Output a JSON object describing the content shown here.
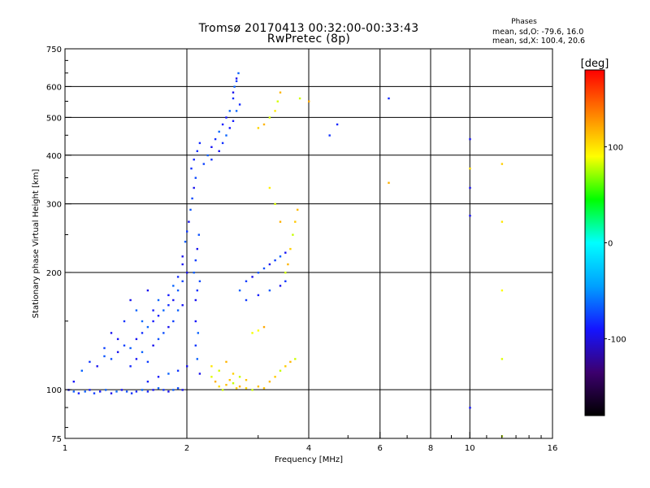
{
  "header": {
    "title_line1": "Tromsø 20170413 00:32:00-00:33:43",
    "title_line2": "RwPretec (8p)"
  },
  "legend": {
    "title": "Phases",
    "line1": "mean, sd,O: -79.6, 16.0",
    "line2": "mean, sd,X: 100.4, 20.6"
  },
  "colorbar": {
    "unit": "[deg]",
    "ticks": [
      "100",
      "0",
      "-100"
    ],
    "tick_values": [
      100,
      0,
      -100
    ],
    "range": [
      -180,
      180
    ],
    "stops": [
      "#000000",
      "#3c006e",
      "#1414ff",
      "#00a0ff",
      "#00ffff",
      "#00ff00",
      "#ffff00",
      "#ff8000",
      "#ff0000"
    ]
  },
  "chart_data": {
    "type": "scatter",
    "xlabel": "Frequency [MHz]",
    "ylabel": "Stationary phase Virtual Height [km]",
    "x_scale": "log",
    "y_scale": "log",
    "xlim": [
      1,
      16
    ],
    "ylim": [
      75,
      750
    ],
    "grid": true,
    "x_ticks": [
      1,
      2,
      4,
      6,
      8,
      10,
      16
    ],
    "x_tick_labels": [
      "1",
      "2",
      "4",
      "6",
      "8",
      "10",
      "16"
    ],
    "x_gridlines": [
      2,
      4,
      6,
      8,
      10
    ],
    "y_ticks": [
      75,
      100,
      200,
      300,
      400,
      500,
      600,
      750
    ],
    "y_tick_labels": [
      "75",
      "100",
      "200",
      "300",
      "400",
      "500",
      "600",
      "750"
    ],
    "y_gridlines": [
      100,
      200,
      300,
      400,
      500,
      600
    ],
    "series": [
      {
        "mode": "O",
        "points": [
          [
            1.02,
            100
          ],
          [
            1.05,
            99
          ],
          [
            1.08,
            98
          ],
          [
            1.12,
            99
          ],
          [
            1.15,
            100
          ],
          [
            1.18,
            98
          ],
          [
            1.22,
            99
          ],
          [
            1.26,
            100
          ],
          [
            1.3,
            98
          ],
          [
            1.34,
            99
          ],
          [
            1.38,
            100
          ],
          [
            1.42,
            99
          ],
          [
            1.46,
            98
          ],
          [
            1.5,
            99
          ],
          [
            1.55,
            100
          ],
          [
            1.6,
            99
          ],
          [
            1.65,
            100
          ],
          [
            1.7,
            101
          ],
          [
            1.75,
            100
          ],
          [
            1.8,
            99
          ],
          [
            1.85,
            100
          ],
          [
            1.9,
            101
          ],
          [
            1.95,
            100
          ],
          [
            1.05,
            105
          ],
          [
            1.1,
            112
          ],
          [
            1.15,
            118
          ],
          [
            1.2,
            115
          ],
          [
            1.25,
            122
          ],
          [
            1.3,
            120
          ],
          [
            1.35,
            125
          ],
          [
            1.4,
            130
          ],
          [
            1.45,
            128
          ],
          [
            1.5,
            135
          ],
          [
            1.55,
            140
          ],
          [
            1.6,
            145
          ],
          [
            1.65,
            150
          ],
          [
            1.7,
            155
          ],
          [
            1.75,
            160
          ],
          [
            1.8,
            165
          ],
          [
            1.85,
            170
          ],
          [
            1.9,
            180
          ],
          [
            1.95,
            190
          ],
          [
            2.0,
            200
          ],
          [
            1.45,
            115
          ],
          [
            1.5,
            120
          ],
          [
            1.55,
            125
          ],
          [
            1.6,
            118
          ],
          [
            1.65,
            130
          ],
          [
            1.7,
            135
          ],
          [
            1.75,
            140
          ],
          [
            1.8,
            145
          ],
          [
            1.85,
            150
          ],
          [
            1.9,
            160
          ],
          [
            1.95,
            165
          ],
          [
            1.6,
            105
          ],
          [
            1.7,
            108
          ],
          [
            1.8,
            110
          ],
          [
            1.9,
            112
          ],
          [
            2.0,
            115
          ],
          [
            1.55,
            150
          ],
          [
            1.65,
            160
          ],
          [
            1.7,
            170
          ],
          [
            1.8,
            175
          ],
          [
            1.85,
            185
          ],
          [
            1.9,
            195
          ],
          [
            1.95,
            210
          ],
          [
            1.95,
            220
          ],
          [
            1.98,
            240
          ],
          [
            2.0,
            255
          ],
          [
            2.02,
            270
          ],
          [
            2.04,
            290
          ],
          [
            2.06,
            310
          ],
          [
            2.08,
            330
          ],
          [
            2.1,
            350
          ],
          [
            2.05,
            370
          ],
          [
            2.08,
            390
          ],
          [
            2.12,
            410
          ],
          [
            2.15,
            430
          ],
          [
            2.08,
            200
          ],
          [
            2.1,
            215
          ],
          [
            2.12,
            230
          ],
          [
            2.14,
            250
          ],
          [
            2.1,
            170
          ],
          [
            2.12,
            180
          ],
          [
            2.15,
            190
          ],
          [
            2.1,
            150
          ],
          [
            2.13,
            140
          ],
          [
            2.1,
            130
          ],
          [
            2.12,
            120
          ],
          [
            2.15,
            110
          ],
          [
            2.2,
            380
          ],
          [
            2.25,
            400
          ],
          [
            2.3,
            420
          ],
          [
            2.35,
            440
          ],
          [
            2.4,
            460
          ],
          [
            2.45,
            480
          ],
          [
            2.5,
            500
          ],
          [
            2.55,
            520
          ],
          [
            2.6,
            560
          ],
          [
            2.62,
            600
          ],
          [
            2.65,
            630
          ],
          [
            2.68,
            650
          ],
          [
            2.3,
            390
          ],
          [
            2.4,
            410
          ],
          [
            2.45,
            430
          ],
          [
            2.5,
            450
          ],
          [
            2.55,
            470
          ],
          [
            2.6,
            490
          ],
          [
            2.65,
            520
          ],
          [
            2.7,
            540
          ],
          [
            2.6,
            580
          ],
          [
            2.65,
            620
          ],
          [
            2.7,
            180
          ],
          [
            2.8,
            190
          ],
          [
            2.9,
            195
          ],
          [
            3.0,
            200
          ],
          [
            3.1,
            205
          ],
          [
            3.2,
            210
          ],
          [
            3.3,
            215
          ],
          [
            3.4,
            220
          ],
          [
            3.5,
            225
          ],
          [
            2.8,
            170
          ],
          [
            3.0,
            175
          ],
          [
            3.2,
            180
          ],
          [
            3.4,
            185
          ],
          [
            3.5,
            190
          ],
          [
            1.3,
            140
          ],
          [
            1.4,
            150
          ],
          [
            1.5,
            160
          ],
          [
            1.45,
            170
          ],
          [
            1.6,
            180
          ],
          [
            1.35,
            135
          ],
          [
            1.25,
            128
          ],
          [
            4.5,
            450
          ],
          [
            4.7,
            480
          ],
          [
            6.3,
            560
          ],
          [
            10.0,
            440
          ],
          [
            10.0,
            330
          ],
          [
            10.0,
            280
          ],
          [
            10.0,
            90
          ]
        ]
      },
      {
        "mode": "X",
        "points": [
          [
            2.3,
            108
          ],
          [
            2.35,
            105
          ],
          [
            2.4,
            102
          ],
          [
            2.45,
            100
          ],
          [
            2.5,
            103
          ],
          [
            2.55,
            106
          ],
          [
            2.6,
            104
          ],
          [
            2.65,
            101
          ],
          [
            2.7,
            102
          ],
          [
            2.8,
            101
          ],
          [
            2.9,
            100
          ],
          [
            3.0,
            102
          ],
          [
            3.1,
            101
          ],
          [
            2.3,
            115
          ],
          [
            2.4,
            112
          ],
          [
            2.5,
            118
          ],
          [
            2.6,
            110
          ],
          [
            2.7,
            108
          ],
          [
            2.8,
            106
          ],
          [
            3.2,
            105
          ],
          [
            3.3,
            108
          ],
          [
            3.4,
            112
          ],
          [
            3.5,
            115
          ],
          [
            3.6,
            118
          ],
          [
            3.7,
            120
          ],
          [
            3.0,
            470
          ],
          [
            3.1,
            480
          ],
          [
            3.2,
            500
          ],
          [
            3.3,
            520
          ],
          [
            3.35,
            550
          ],
          [
            3.4,
            580
          ],
          [
            3.5,
            200
          ],
          [
            3.55,
            210
          ],
          [
            3.6,
            230
          ],
          [
            3.65,
            250
          ],
          [
            3.7,
            270
          ],
          [
            3.75,
            290
          ],
          [
            2.9,
            140
          ],
          [
            3.0,
            142
          ],
          [
            3.1,
            145
          ],
          [
            3.2,
            330
          ],
          [
            3.3,
            300
          ],
          [
            3.4,
            270
          ],
          [
            6.3,
            340
          ],
          [
            10.0,
            370
          ],
          [
            12.0,
            380
          ],
          [
            12.0,
            270
          ],
          [
            12.0,
            180
          ],
          [
            12.0,
            120
          ],
          [
            12.0,
            76
          ],
          [
            3.8,
            560
          ],
          [
            4.0,
            550
          ]
        ]
      }
    ]
  }
}
